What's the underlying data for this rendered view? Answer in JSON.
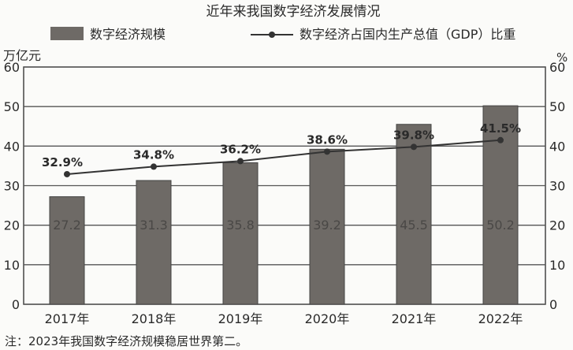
{
  "chart_data": {
    "type": "bar+line",
    "title": "近年来我国数字经济发展情况",
    "categories": [
      "2017年",
      "2018年",
      "2019年",
      "2020年",
      "2021年",
      "2022年"
    ],
    "series": [
      {
        "name": "数字经济规模",
        "type": "bar",
        "axis": "left",
        "values": [
          27.2,
          31.3,
          35.8,
          39.2,
          45.5,
          50.2
        ],
        "labels": [
          "27.2",
          "31.3",
          "35.8",
          "39.2",
          "45.5",
          "50.2"
        ],
        "color": "#6e6a66"
      },
      {
        "name": "数字经济占国内生产总值（GDP）比重",
        "type": "line",
        "axis": "right",
        "values": [
          32.9,
          34.8,
          36.2,
          38.6,
          39.8,
          41.5
        ],
        "labels": [
          "32.9%",
          "34.8%",
          "36.2%",
          "38.6%",
          "39.8%",
          "41.5%"
        ],
        "color": "#333333"
      }
    ],
    "ylabel_left": "万亿元",
    "ylabel_right": "%",
    "ylim": [
      0,
      60
    ],
    "yticks": [
      "0",
      "10",
      "20",
      "30",
      "40",
      "50",
      "60"
    ],
    "grid": true,
    "legend": "top",
    "note": "注：2023年我国数字经济规模稳居世界第二。"
  }
}
